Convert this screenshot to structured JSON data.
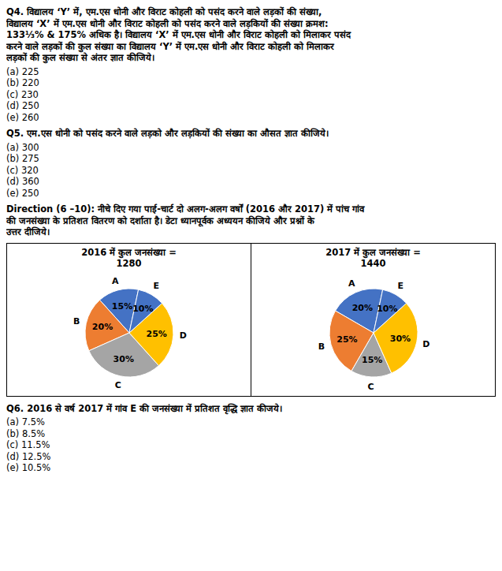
{
  "chart_data": [
    {
      "type": "pie",
      "title": "2016 में कुल जनसंख्या  =",
      "subtitle": "1280",
      "categories": [
        "A",
        "B",
        "C",
        "D",
        "E"
      ],
      "values": [
        15,
        20,
        30,
        25,
        10
      ],
      "value_labels": [
        "15%",
        "20%",
        "30%",
        "25%",
        "10%"
      ],
      "colors": [
        "#4472C4",
        "#ED7D31",
        "#A5A5A5",
        "#FFC000",
        "#4472C4"
      ],
      "data_labels": true
    },
    {
      "type": "pie",
      "title": "2017 में कुल जनसंख्या =",
      "subtitle": "1440",
      "categories": [
        "A",
        "B",
        "C",
        "D",
        "E"
      ],
      "values": [
        20,
        25,
        15,
        30,
        10
      ],
      "value_labels": [
        "20%",
        "25%",
        "15%",
        "30%",
        "10%"
      ],
      "colors": [
        "#4472C4",
        "#ED7D31",
        "#A5A5A5",
        "#FFC000",
        "#4472C4"
      ],
      "data_labels": true
    }
  ],
  "header_annotations": [
    {
      "heading": [
        "Q4. विद्यालय ‘Y’ में, एम.एस धोनी और विराट कोहली को पसंद करने वाले लड़कों की संख्या,",
        "विद्यालय ‘X’ में एम.एस धोनी और विराट कोहली को पसंद करने वाले लड़कियों की संख्या क्रमश:",
        "133⅓% & 175% अधिक है। विद्यालय ‘X’ में एम.एस धोनी और विराट कोहली को मिलाकर पसंद",
        "करने वाले लड़कों की कुल संख्या का विद्यालय ‘Y’ में एम.एस धोनी और विराट कोहली को मिलाकर",
        "लड़कों की कुल संख्या से अंतर ज्ञात कीजिये।"
      ],
      "options": [
        "(a) 225",
        "(b) 220",
        "(c) 230",
        "(d) 250",
        "(e) 260"
      ]
    },
    {
      "heading": [
        "Q5. एम.एस धोनी को पसंद करने वाले लड़को और लड़कियों की संख्या का औसत ज्ञात कीजिये।"
      ],
      "options": [
        "(a) 300",
        "(b) 275",
        "(c) 320",
        "(d) 360",
        "(e) 250"
      ]
    },
    {
      "heading": [
        "Direction (6 –10): नीचे दिए गया पाई-चार्ट दो अलग-अलग वर्षों (2016 और 2017) में पांच गांव",
        "की जनसंख्या के प्रतिशत वितरण को दर्शाता है। डेटा ध्यानपूर्वक अध्ययन कीजिये और प्रश्नों के",
        "उत्तर दीजिये।"
      ],
      "options": []
    }
  ],
  "footer_annotations": [
    {
      "heading": [
        "Q6. 2016 से वर्ष 2017 में गांव E की जनसंख्या में प्रतिशत वृद्धि ज्ञात कीजये।"
      ],
      "options": [
        "(a) 7.5%",
        "(b) 8.5%",
        "(c) 11.5%",
        "(d) 12.5%",
        "(e) 10.5%"
      ]
    }
  ]
}
